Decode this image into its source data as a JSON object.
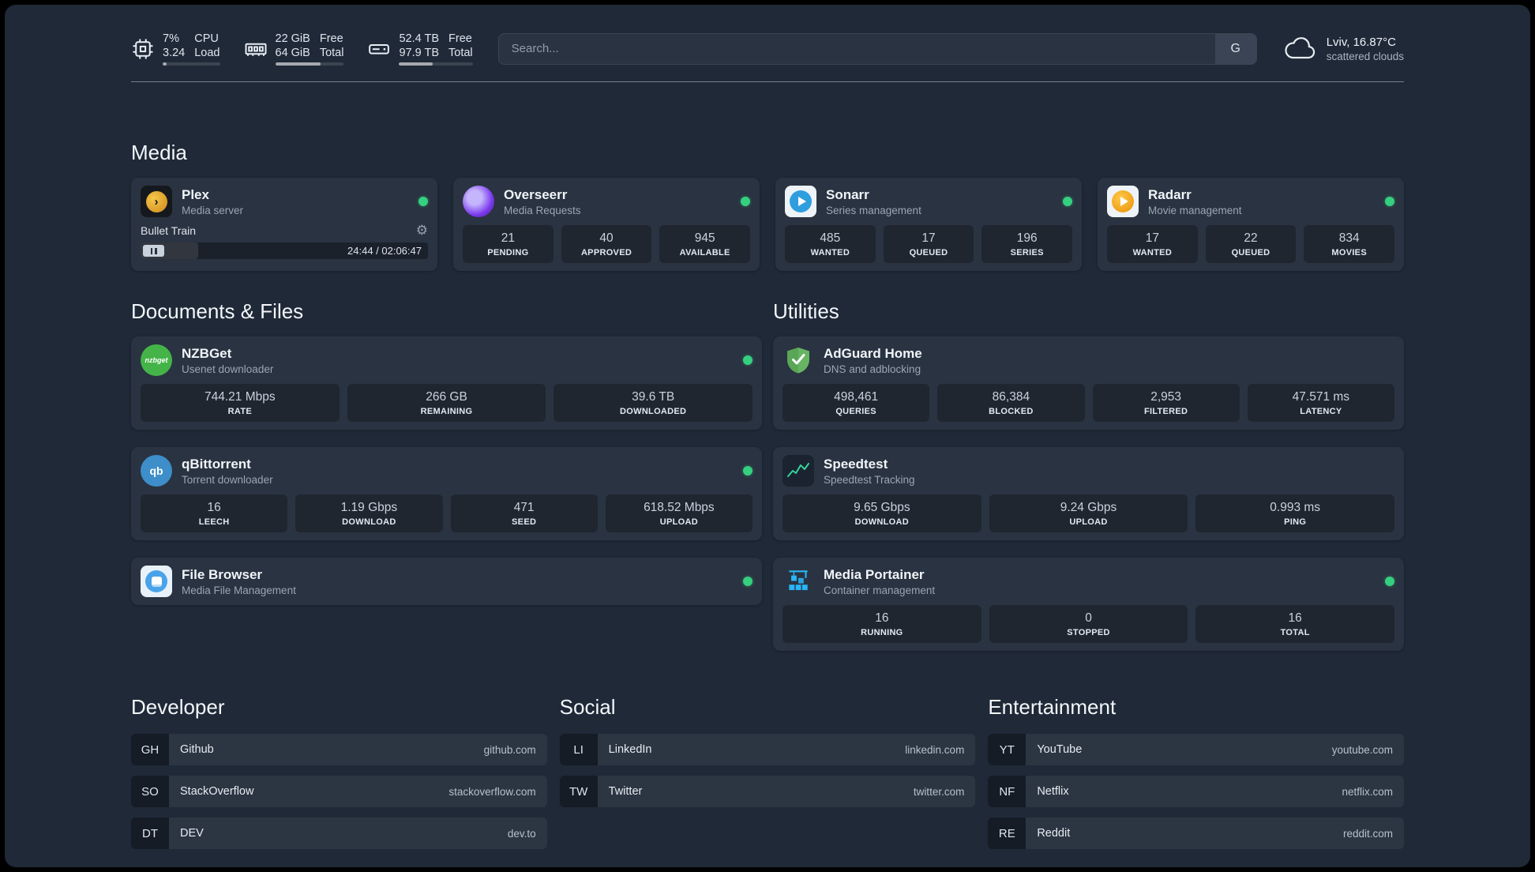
{
  "header": {
    "cpu": {
      "value_top": "7%",
      "value_bottom": "3.24",
      "label_top": "CPU",
      "label_bottom": "Load",
      "progress_pct": 7
    },
    "memory": {
      "value_top": "22 GiB",
      "value_bottom": "64 GiB",
      "label_top": "Free",
      "label_bottom": "Total",
      "progress_pct": 66
    },
    "disk": {
      "value_top": "52.4 TB",
      "value_bottom": "97.9 TB",
      "label_top": "Free",
      "label_bottom": "Total",
      "progress_pct": 46
    },
    "search": {
      "placeholder": "Search...",
      "provider_button": "G"
    },
    "weather": {
      "location": "Lviv, 16.87°C",
      "condition": "scattered clouds"
    }
  },
  "media": {
    "heading": "Media",
    "plex": {
      "title": "Plex",
      "subtitle": "Media server",
      "now_playing": {
        "title": "Bullet Train",
        "time": "24:44 / 02:06:47",
        "progress_pct": 20
      }
    },
    "overseerr": {
      "title": "Overseerr",
      "subtitle": "Media Requests",
      "stats": [
        {
          "value": "21",
          "label": "PENDING"
        },
        {
          "value": "40",
          "label": "APPROVED"
        },
        {
          "value": "945",
          "label": "AVAILABLE"
        }
      ]
    },
    "sonarr": {
      "title": "Sonarr",
      "subtitle": "Series management",
      "stats": [
        {
          "value": "485",
          "label": "WANTED"
        },
        {
          "value": "17",
          "label": "QUEUED"
        },
        {
          "value": "196",
          "label": "SERIES"
        }
      ]
    },
    "radarr": {
      "title": "Radarr",
      "subtitle": "Movie management",
      "stats": [
        {
          "value": "17",
          "label": "WANTED"
        },
        {
          "value": "22",
          "label": "QUEUED"
        },
        {
          "value": "834",
          "label": "MOVIES"
        }
      ]
    }
  },
  "documents": {
    "heading": "Documents & Files",
    "nzbget": {
      "title": "NZBGet",
      "subtitle": "Usenet downloader",
      "icon_text": "nzbget",
      "stats": [
        {
          "value": "744.21 Mbps",
          "label": "RATE"
        },
        {
          "value": "266 GB",
          "label": "REMAINING"
        },
        {
          "value": "39.6 TB",
          "label": "DOWNLOADED"
        }
      ]
    },
    "qbittorrent": {
      "title": "qBittorrent",
      "subtitle": "Torrent downloader",
      "icon_text": "qb",
      "stats": [
        {
          "value": "16",
          "label": "LEECH"
        },
        {
          "value": "1.19 Gbps",
          "label": "DOWNLOAD"
        },
        {
          "value": "471",
          "label": "SEED"
        },
        {
          "value": "618.52 Mbps",
          "label": "UPLOAD"
        }
      ]
    },
    "filebrowser": {
      "title": "File Browser",
      "subtitle": "Media File Management"
    }
  },
  "utilities": {
    "heading": "Utilities",
    "adguard": {
      "title": "AdGuard Home",
      "subtitle": "DNS and adblocking",
      "stats": [
        {
          "value": "498,461",
          "label": "QUERIES"
        },
        {
          "value": "86,384",
          "label": "BLOCKED"
        },
        {
          "value": "2,953",
          "label": "FILTERED"
        },
        {
          "value": "47.571 ms",
          "label": "LATENCY"
        }
      ]
    },
    "speedtest": {
      "title": "Speedtest",
      "subtitle": "Speedtest Tracking",
      "stats": [
        {
          "value": "9.65 Gbps",
          "label": "DOWNLOAD"
        },
        {
          "value": "9.24 Gbps",
          "label": "UPLOAD"
        },
        {
          "value": "0.993 ms",
          "label": "PING"
        }
      ]
    },
    "portainer": {
      "title": "Media Portainer",
      "subtitle": "Container management",
      "stats": [
        {
          "value": "16",
          "label": "RUNNING"
        },
        {
          "value": "0",
          "label": "STOPPED"
        },
        {
          "value": "16",
          "label": "TOTAL"
        }
      ]
    }
  },
  "bookmarks": {
    "developer": {
      "heading": "Developer",
      "items": [
        {
          "abbr": "GH",
          "name": "Github",
          "domain": "github.com"
        },
        {
          "abbr": "SO",
          "name": "StackOverflow",
          "domain": "stackoverflow.com"
        },
        {
          "abbr": "DT",
          "name": "DEV",
          "domain": "dev.to"
        }
      ]
    },
    "social": {
      "heading": "Social",
      "items": [
        {
          "abbr": "LI",
          "name": "LinkedIn",
          "domain": "linkedin.com"
        },
        {
          "abbr": "TW",
          "name": "Twitter",
          "domain": "twitter.com"
        }
      ]
    },
    "entertainment": {
      "heading": "Entertainment",
      "items": [
        {
          "abbr": "YT",
          "name": "YouTube",
          "domain": "youtube.com"
        },
        {
          "abbr": "NF",
          "name": "Netflix",
          "domain": "netflix.com"
        },
        {
          "abbr": "RE",
          "name": "Reddit",
          "domain": "reddit.com"
        }
      ]
    }
  }
}
